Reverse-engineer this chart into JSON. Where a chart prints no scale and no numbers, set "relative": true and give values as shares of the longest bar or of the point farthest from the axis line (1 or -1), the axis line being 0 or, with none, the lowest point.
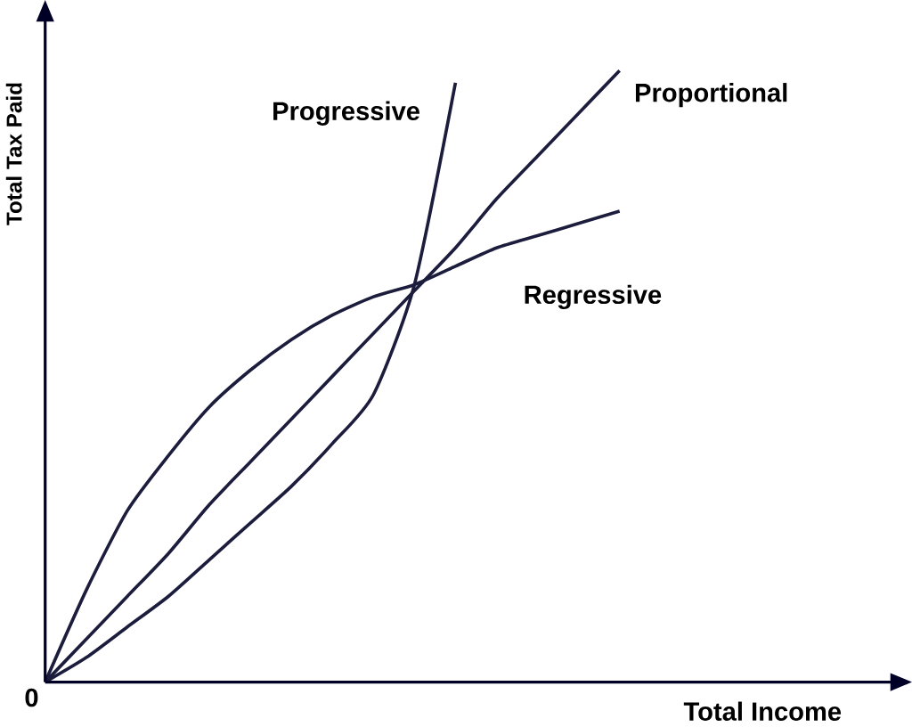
{
  "chart_data": {
    "type": "line",
    "relative": true,
    "xlabel": "Total Income",
    "ylabel": "Total Tax Paid",
    "annotations": [
      "0"
    ],
    "categories": [
      null,
      null,
      null,
      null,
      null,
      null,
      null,
      null,
      null,
      null,
      null,
      null,
      null,
      null,
      null,
      null,
      null,
      null,
      null,
      null,
      null
    ],
    "marker": "none",
    "line_style": "solid",
    "legend": false,
    "series": [
      {
        "name": "Progressive",
        "color": "#1c1c3c",
        "values": [
          0,
          0.04,
          0.09,
          0.14,
          0.2,
          0.26,
          0.32,
          0.39,
          0.47,
          0.65,
          0.98,
          null,
          null,
          null,
          null,
          null,
          null,
          null,
          null,
          null,
          null
        ]
      },
      {
        "name": "Proportional",
        "color": "#1c1c3c",
        "values": [
          0,
          0.07,
          0.14,
          0.21,
          0.29,
          0.36,
          0.43,
          0.5,
          0.57,
          0.64,
          0.71,
          0.79,
          0.86,
          0.93,
          1,
          null,
          null,
          null,
          null,
          null,
          null
        ]
      },
      {
        "name": "Regressive",
        "color": "#1c1c3c",
        "values": [
          0,
          0.15,
          0.28,
          0.37,
          0.45,
          0.51,
          0.56,
          0.6,
          0.63,
          0.65,
          0.68,
          0.71,
          0.73,
          0.75,
          0.77,
          null,
          null,
          null,
          null,
          null,
          null
        ]
      }
    ]
  }
}
